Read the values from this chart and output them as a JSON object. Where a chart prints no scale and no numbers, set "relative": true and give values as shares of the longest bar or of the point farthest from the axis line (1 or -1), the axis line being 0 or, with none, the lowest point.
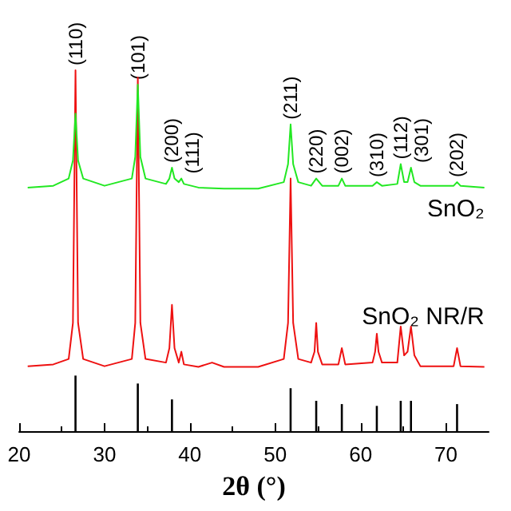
{
  "chart_data": {
    "type": "line",
    "relative": true,
    "xlabel": "2θ (°)",
    "xlim": [
      20,
      75
    ],
    "xticks": [
      20,
      30,
      40,
      50,
      60,
      70
    ],
    "tick_labels": "x",
    "marker": "none",
    "annotations": [
      {
        "text": "(110)",
        "x": 26.6,
        "y": 1.0
      },
      {
        "text": "(101)",
        "x": 33.9,
        "y": 0.96
      },
      {
        "text": "(200)",
        "x": 37.9,
        "y": 0.73
      },
      {
        "text": "(111)",
        "x": 39.0,
        "y": 0.7
      },
      {
        "text": "(211)",
        "x": 51.8,
        "y": 0.85
      },
      {
        "text": "(220)",
        "x": 54.8,
        "y": 0.7
      },
      {
        "text": "(002)",
        "x": 57.8,
        "y": 0.7
      },
      {
        "text": "(310)",
        "x": 61.9,
        "y": 0.69
      },
      {
        "text": "(112)",
        "x": 64.7,
        "y": 0.74
      },
      {
        "text": "(301)",
        "x": 65.9,
        "y": 0.73
      },
      {
        "text": "(202)",
        "x": 71.3,
        "y": 0.69
      }
    ],
    "series": [
      {
        "name": "SnO₂",
        "color": "#22e822",
        "x": [
          21,
          24,
          25.8,
          26.3,
          26.6,
          26.9,
          27.5,
          30,
          33.2,
          33.6,
          33.9,
          34.2,
          34.8,
          37.2,
          37.6,
          37.9,
          38.2,
          38.7,
          39.0,
          39.3,
          41,
          44,
          48,
          51.0,
          51.5,
          51.8,
          52.1,
          52.7,
          54.2,
          54.8,
          55.5,
          57.4,
          57.8,
          58.2,
          61.4,
          61.9,
          62.5,
          64.3,
          64.7,
          65.1,
          65.5,
          65.9,
          66.3,
          67,
          70.9,
          71.3,
          71.7,
          74.5
        ],
        "values": [
          0.675,
          0.68,
          0.7,
          0.75,
          0.88,
          0.75,
          0.7,
          0.68,
          0.7,
          0.76,
          0.96,
          0.76,
          0.7,
          0.685,
          0.7,
          0.73,
          0.7,
          0.69,
          0.7,
          0.685,
          0.675,
          0.672,
          0.672,
          0.69,
          0.74,
          0.85,
          0.74,
          0.69,
          0.68,
          0.7,
          0.68,
          0.68,
          0.7,
          0.68,
          0.68,
          0.69,
          0.68,
          0.685,
          0.74,
          0.69,
          0.69,
          0.73,
          0.69,
          0.68,
          0.68,
          0.69,
          0.68,
          0.675
        ]
      },
      {
        "name": "SnO₂ NR/R",
        "color": "#ee1111",
        "x": [
          21,
          24,
          25.8,
          26.3,
          26.6,
          26.9,
          27.5,
          30,
          33.2,
          33.6,
          33.9,
          34.2,
          34.8,
          37.2,
          37.6,
          37.9,
          38.2,
          38.7,
          39.0,
          39.3,
          41,
          42.6,
          44,
          48,
          51.0,
          51.5,
          51.8,
          52.1,
          52.7,
          54.2,
          54.6,
          54.8,
          55.0,
          55.5,
          57.4,
          57.8,
          58.2,
          61.4,
          61.7,
          61.9,
          62.1,
          62.5,
          64.3,
          64.7,
          65.1,
          65.5,
          65.9,
          66.3,
          67,
          70.9,
          71.3,
          71.7,
          74.5
        ],
        "values": [
          0.18,
          0.185,
          0.2,
          0.3,
          1.0,
          0.3,
          0.2,
          0.18,
          0.2,
          0.3,
          0.98,
          0.3,
          0.2,
          0.19,
          0.23,
          0.35,
          0.23,
          0.19,
          0.22,
          0.185,
          0.178,
          0.19,
          0.178,
          0.178,
          0.2,
          0.3,
          0.7,
          0.3,
          0.2,
          0.19,
          0.22,
          0.3,
          0.22,
          0.185,
          0.185,
          0.23,
          0.185,
          0.19,
          0.22,
          0.27,
          0.22,
          0.19,
          0.19,
          0.29,
          0.21,
          0.22,
          0.29,
          0.21,
          0.18,
          0.18,
          0.23,
          0.18,
          0.178
        ]
      },
      {
        "type": "bar",
        "color": "#000000",
        "x": [
          26.6,
          33.9,
          37.9,
          51.8,
          54.8,
          57.8,
          61.9,
          64.7,
          65.9,
          71.3
        ],
        "values": [
          0.154,
          0.132,
          0.088,
          0.119,
          0.084,
          0.075,
          0.07,
          0.084,
          0.084,
          0.075
        ]
      }
    ]
  }
}
